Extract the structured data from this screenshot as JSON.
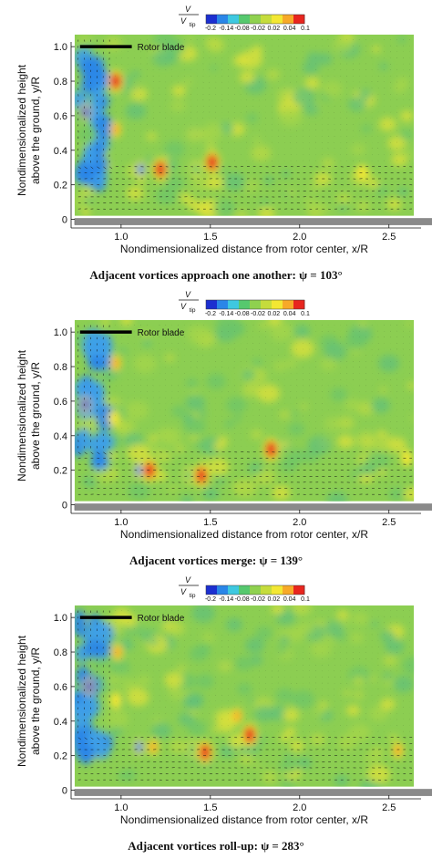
{
  "figure": {
    "border_color": "#c8c8c8"
  },
  "colorbar": {
    "title_numerator": "V",
    "title_denominator": "V",
    "title_denominator_sub": "tip",
    "tick_labels": [
      "-0.2",
      "-0.14",
      "-0.08",
      "-0.02",
      "0.02",
      "0.04",
      "0.1"
    ],
    "colors": [
      "#1c2fd0",
      "#2a86e8",
      "#3ec8e0",
      "#56c86e",
      "#8fd14f",
      "#c5dc3c",
      "#f3e733",
      "#f7a928",
      "#e8251e"
    ]
  },
  "colors": {
    "field_base": "#8cce52",
    "ground": "#8a8a8a",
    "rotor_blade": "#000000",
    "vectors": "#111111"
  },
  "chart_data": [
    {
      "type": "heatmap",
      "title": "Adjacent vortices approach one another: ψ = 103°",
      "caption_text": "Adjacent vortices approach one another: ψ = 103°",
      "xlabel": "Nondimensionalized distance from rotor center, x/R",
      "ylabel_line1": "Nondimensionalized height",
      "ylabel_line2": "above the ground, y/R",
      "xlim": [
        0.72,
        2.68
      ],
      "ylim": [
        -0.05,
        1.08
      ],
      "x_ticks": [
        1.0,
        1.5,
        2.0,
        2.5
      ],
      "x_tick_labels": [
        "1.0",
        "1.5",
        "2.0",
        "2.5"
      ],
      "y_ticks": [
        0,
        0.2,
        0.4,
        0.6,
        0.8,
        1.0
      ],
      "y_tick_labels": [
        "0",
        "0.2",
        "0.4",
        "0.6",
        "0.8",
        "1.0"
      ],
      "rotor_blade_label": "Rotor blade",
      "rotor_blade_span": [
        0.77,
        1.06
      ],
      "rotor_blade_y": 1.0,
      "vortices": [
        {
          "x": 0.8,
          "y": 0.62,
          "v": -0.2
        },
        {
          "x": 0.97,
          "y": 0.8,
          "v": 0.1
        },
        {
          "x": 0.97,
          "y": 0.52,
          "v": 0.06
        },
        {
          "x": 1.11,
          "y": 0.29,
          "v": -0.16
        },
        {
          "x": 1.22,
          "y": 0.29,
          "v": 0.1
        },
        {
          "x": 1.42,
          "y": 0.29,
          "v": -0.08
        },
        {
          "x": 1.51,
          "y": 0.33,
          "v": 0.1
        },
        {
          "x": 2.35,
          "y": 0.27,
          "v": 0.04
        }
      ]
    },
    {
      "type": "heatmap",
      "title": "Adjacent vortices merge: ψ = 139°",
      "caption_text": "Adjacent vortices merge: ψ = 139°",
      "xlabel": "Nondimensionalized distance from rotor center, x/R",
      "ylabel_line1": "Nondimensionalized height",
      "ylabel_line2": "above the ground, y/R",
      "xlim": [
        0.72,
        2.68
      ],
      "ylim": [
        -0.05,
        1.08
      ],
      "x_ticks": [
        1.0,
        1.5,
        2.0,
        2.5
      ],
      "x_tick_labels": [
        "1.0",
        "1.5",
        "2.0",
        "2.5"
      ],
      "y_ticks": [
        0,
        0.2,
        0.4,
        0.6,
        0.8,
        1.0
      ],
      "y_tick_labels": [
        "0",
        "0.2",
        "0.4",
        "0.6",
        "0.8",
        "1.0"
      ],
      "rotor_blade_label": "Rotor blade",
      "rotor_blade_span": [
        0.77,
        1.06
      ],
      "rotor_blade_y": 1.0,
      "vortices": [
        {
          "x": 0.8,
          "y": 0.58,
          "v": -0.2
        },
        {
          "x": 0.97,
          "y": 0.82,
          "v": 0.08
        },
        {
          "x": 0.96,
          "y": 0.5,
          "v": 0.04
        },
        {
          "x": 1.1,
          "y": 0.2,
          "v": -0.16
        },
        {
          "x": 1.16,
          "y": 0.2,
          "v": 0.1
        },
        {
          "x": 1.38,
          "y": 0.17,
          "v": -0.1
        },
        {
          "x": 1.45,
          "y": 0.17,
          "v": 0.1
        },
        {
          "x": 1.84,
          "y": 0.32,
          "v": 0.1
        },
        {
          "x": 2.6,
          "y": 0.27,
          "v": 0.04
        }
      ]
    },
    {
      "type": "heatmap",
      "title": "Adjacent vortices roll-up: ψ = 283°",
      "caption_text": "Adjacent vortices roll-up: ψ = 283°",
      "xlabel": "Nondimensionalized distance from rotor center, x/R",
      "ylabel_line1": "Nondimensionalized height",
      "ylabel_line2": "above the ground, y/R",
      "xlim": [
        0.72,
        2.68
      ],
      "ylim": [
        -0.05,
        1.08
      ],
      "x_ticks": [
        1.0,
        1.5,
        2.0,
        2.5
      ],
      "x_tick_labels": [
        "1.0",
        "1.5",
        "2.0",
        "2.5"
      ],
      "y_ticks": [
        0,
        0.2,
        0.4,
        0.6,
        0.8,
        1.0
      ],
      "y_tick_labels": [
        "0",
        "0.2",
        "0.4",
        "0.6",
        "0.8",
        "1.0"
      ],
      "rotor_blade_label": "Rotor blade",
      "rotor_blade_span": [
        0.77,
        1.06
      ],
      "rotor_blade_y": 1.0,
      "vortices": [
        {
          "x": 0.82,
          "y": 0.6,
          "v": -0.2
        },
        {
          "x": 0.98,
          "y": 0.8,
          "v": 0.08
        },
        {
          "x": 0.97,
          "y": 0.52,
          "v": 0.04
        },
        {
          "x": 1.1,
          "y": 0.25,
          "v": -0.16
        },
        {
          "x": 1.18,
          "y": 0.25,
          "v": 0.06
        },
        {
          "x": 1.4,
          "y": 0.24,
          "v": -0.08
        },
        {
          "x": 1.47,
          "y": 0.22,
          "v": 0.1
        },
        {
          "x": 1.65,
          "y": 0.43,
          "v": 0.06
        },
        {
          "x": 1.72,
          "y": 0.32,
          "v": 0.1
        },
        {
          "x": 2.55,
          "y": 0.23,
          "v": 0.06
        }
      ]
    }
  ]
}
